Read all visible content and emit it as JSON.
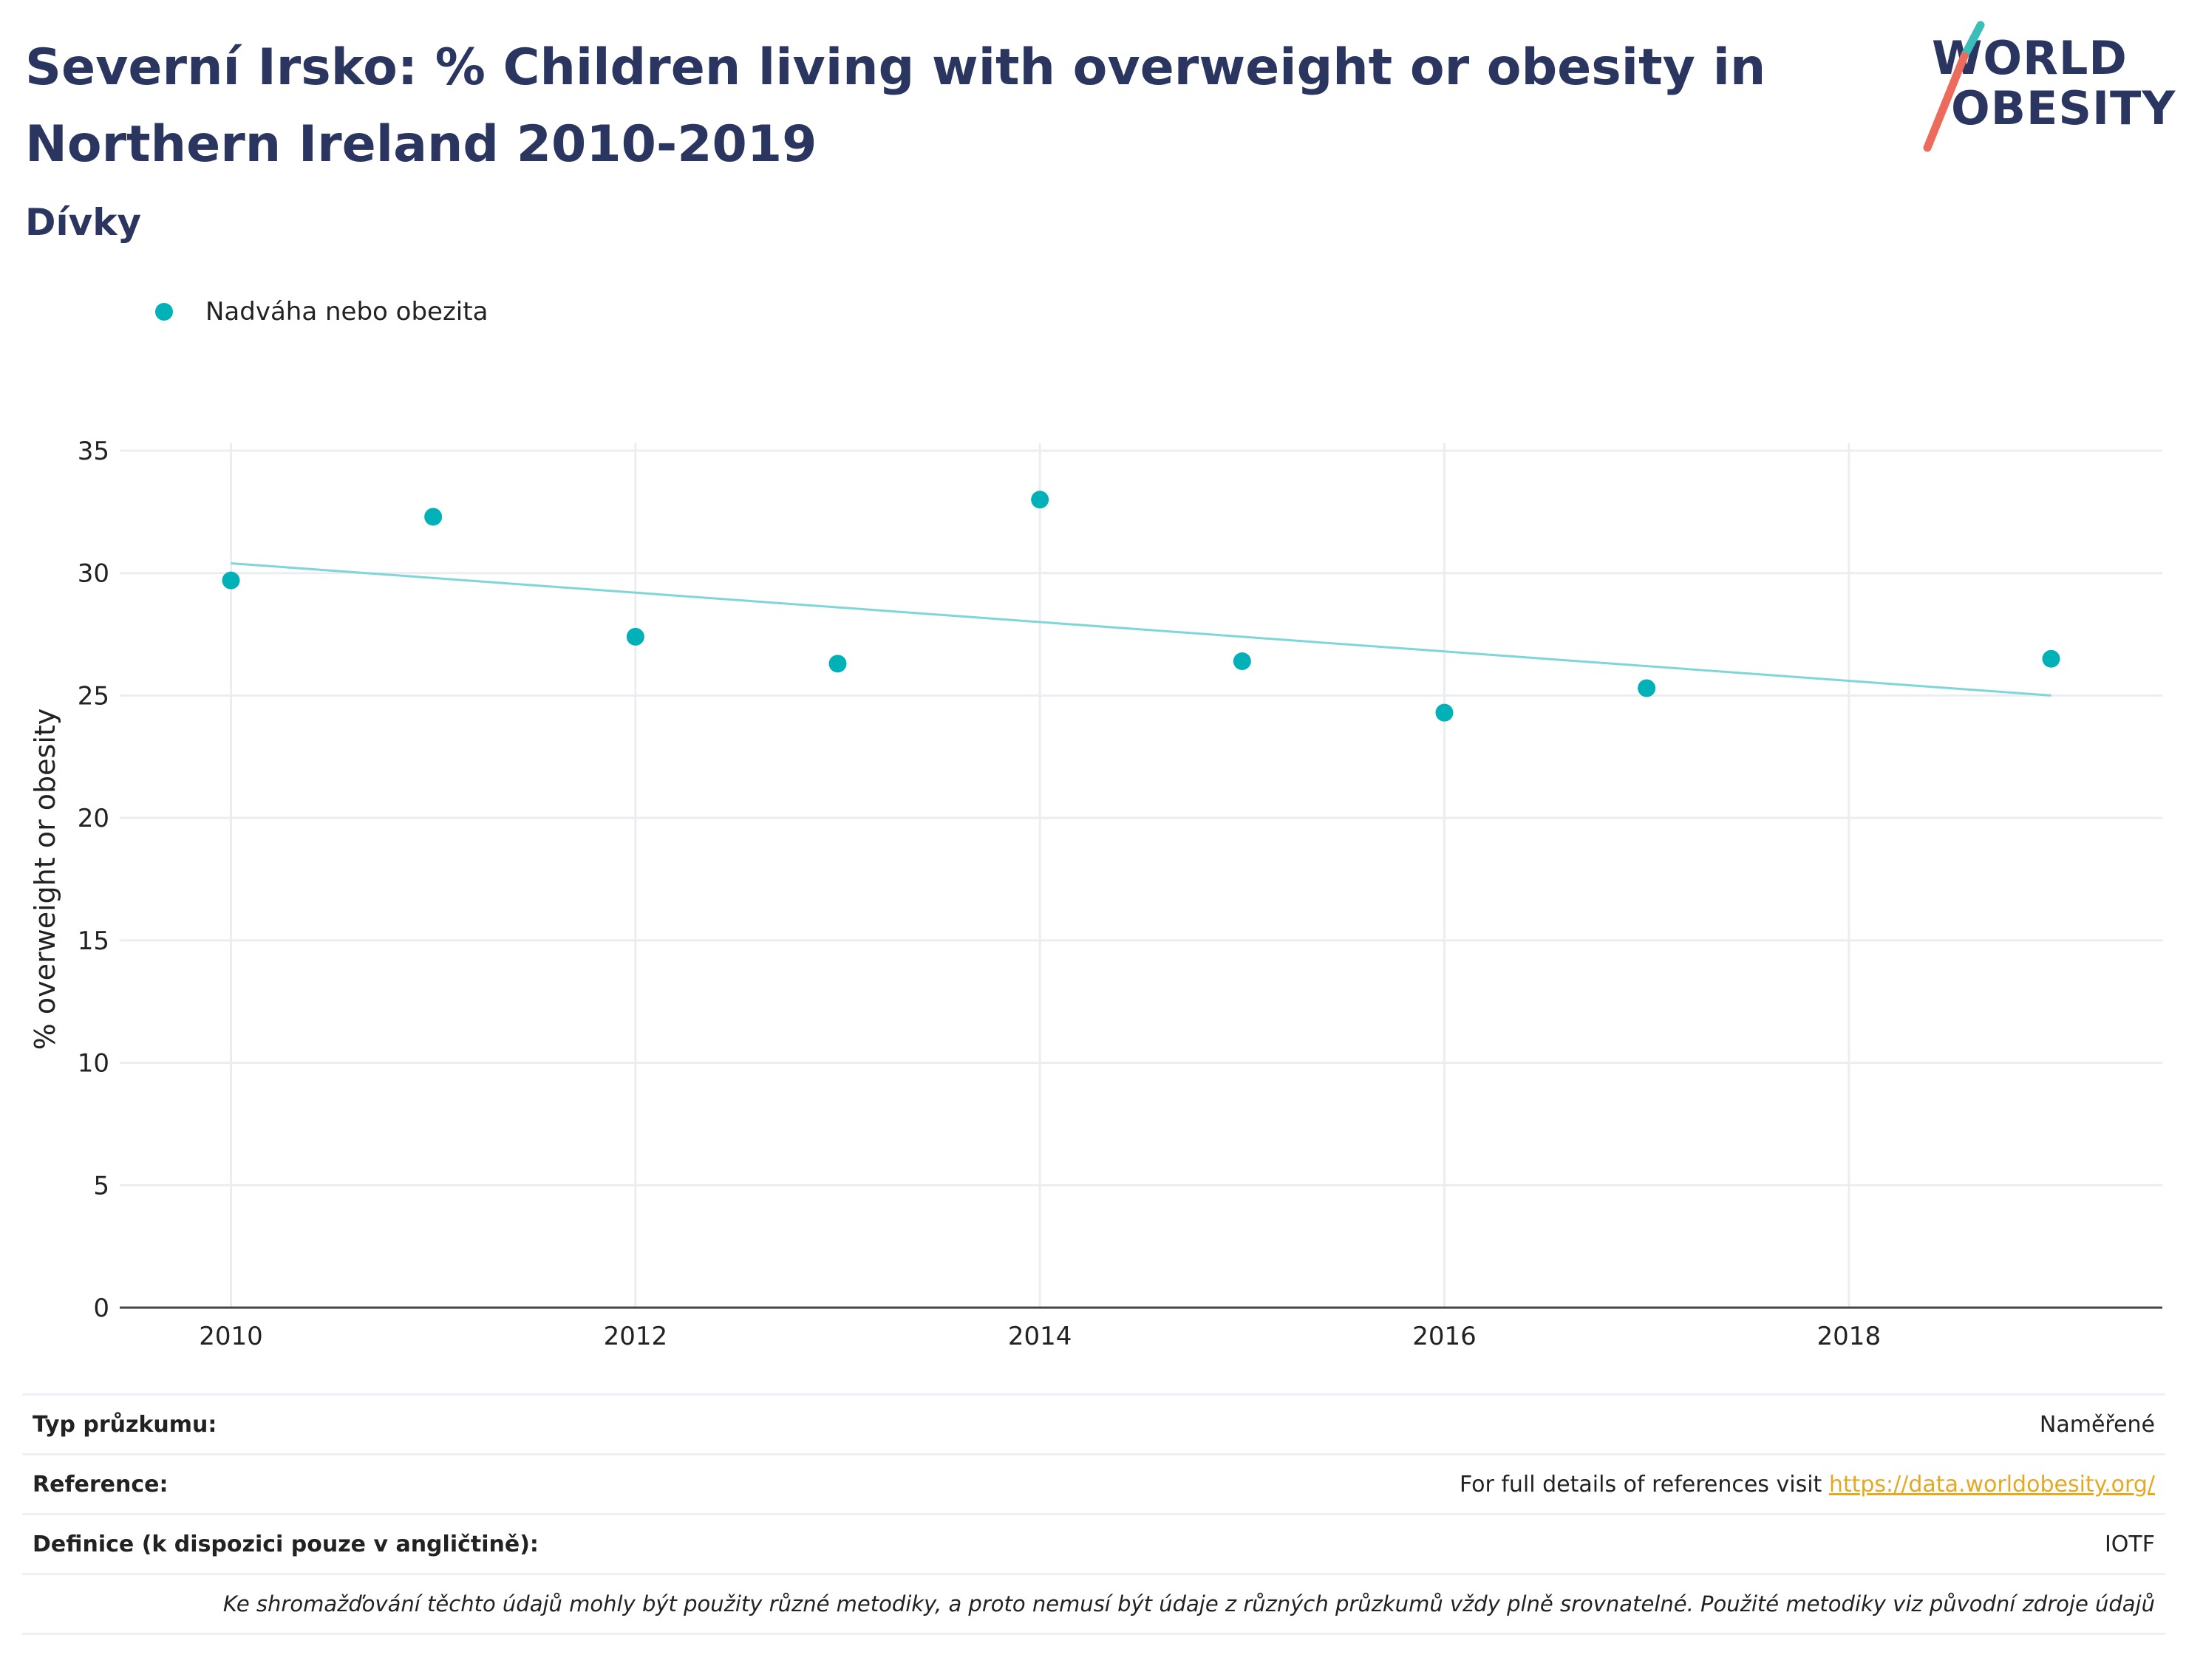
{
  "header": {
    "title": "Severní Irsko: % Children living with overweight or obesity in Northern Ireland 2010-2019",
    "subtitle": "Dívky"
  },
  "logo": {
    "line1": "WORLD",
    "line2": "OBESITY"
  },
  "legend": {
    "label": "Nadváha nebo obezita",
    "color": "#00b1b7"
  },
  "chart_data": {
    "type": "scatter",
    "title": "Severní Irsko: % Children living with overweight or obesity in Northern Ireland 2010-2019",
    "subtitle": "Dívky",
    "xlabel": "",
    "ylabel": "% overweight or obesity",
    "xlim": [
      2009.45,
      2019.55
    ],
    "ylim": [
      0,
      35
    ],
    "x_ticks": [
      2010,
      2012,
      2014,
      2016,
      2018
    ],
    "y_ticks": [
      0,
      5,
      10,
      15,
      20,
      25,
      30,
      35
    ],
    "grid": true,
    "legend_position": "top-left",
    "series": [
      {
        "name": "Nadváha nebo obezita",
        "color": "#00b1b7",
        "x": [
          2010,
          2011,
          2012,
          2013,
          2014,
          2015,
          2016,
          2017,
          2019
        ],
        "y": [
          29.7,
          32.3,
          27.4,
          26.3,
          33.0,
          26.4,
          24.3,
          25.3,
          26.5
        ]
      }
    ],
    "trendline": {
      "color": "#7fd6d9",
      "x": [
        2010,
        2019
      ],
      "y": [
        30.4,
        25.0
      ]
    }
  },
  "footer": {
    "survey_type_label": "Typ průzkumu:",
    "survey_type_value": "Naměřené",
    "reference_label": "Reference:",
    "reference_text": "For full details of references visit",
    "reference_link": "https://data.worldobesity.org/",
    "definition_label": "Definice (k dispozici pouze v angličtině):",
    "definition_value": "IOTF",
    "note": "Ke shromažďování těchto údajů mohly být použity různé metodiky, a proto nemusí být údaje z různých průzkumů vždy plně srovnatelné. Použité metodiky viz původní zdroje údajů"
  }
}
